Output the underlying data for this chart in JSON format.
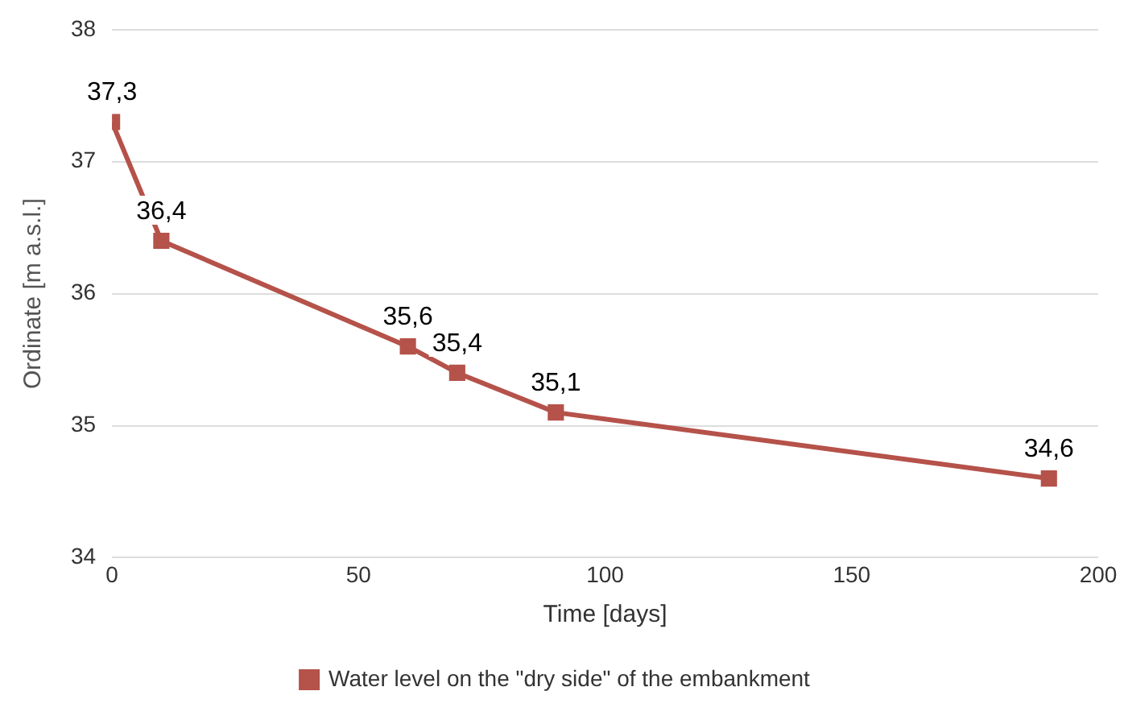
{
  "chart_data": {
    "type": "line",
    "xlabel": "Time [days]",
    "ylabel": "Ordinate [m a.s.l.]",
    "x": [
      0,
      10,
      60,
      70,
      90,
      190
    ],
    "series": [
      {
        "name": "Water level on the \"dry side\" of the embankment",
        "color": "#b5524a",
        "values": [
          37.3,
          36.4,
          35.6,
          35.4,
          35.1,
          34.6
        ],
        "value_labels": [
          "37,3",
          "36,4",
          "35,6",
          "35,4",
          "35,1",
          "34,6"
        ]
      }
    ],
    "xlim": [
      0,
      200
    ],
    "xticks": [
      0,
      50,
      100,
      150,
      200
    ],
    "ylim": [
      34,
      38
    ],
    "yticks": [
      34,
      35,
      36,
      37,
      38
    ],
    "grid": "y",
    "legend": "bottom",
    "marker": "square",
    "line_style": "solid"
  }
}
